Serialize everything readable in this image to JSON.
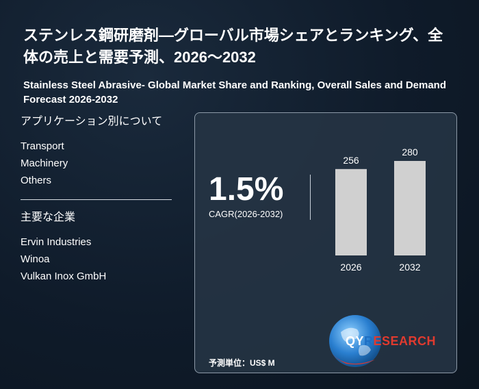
{
  "header": {
    "title_jp": "ステンレス鋼研磨剤—グローバル市場シェアとランキング、全体の売上と需要予測、2026～2032",
    "title_en": "Stainless Steel Abrasive- Global Market Share and Ranking, Overall Sales and Demand Forecast 2026-2032"
  },
  "applications": {
    "heading": "アプリケーション別について",
    "items": [
      "Transport",
      "Machinery",
      "Others"
    ]
  },
  "companies": {
    "heading": "主要な企業",
    "items": [
      "Ervin Industries",
      "Winoa",
      "Vulkan Inox GmbH"
    ]
  },
  "panel": {
    "cagr_value": "1.5%",
    "cagr_label": "CAGR(2026-2032)",
    "unit_label": "予測単位：US$ M"
  },
  "chart_data": {
    "type": "bar",
    "categories": [
      "2026",
      "2032"
    ],
    "values": [
      256,
      280
    ],
    "ylim": [
      0,
      280
    ],
    "bar_color": "#d0d0d0"
  },
  "logo": {
    "name": "QYRESEARCH",
    "part_q": "Q",
    "part_y": "Y",
    "part_r": "R",
    "part_rest": "ESEARCH",
    "colors": {
      "red": "#e03a2f",
      "blue": "#1e6fc4"
    }
  }
}
